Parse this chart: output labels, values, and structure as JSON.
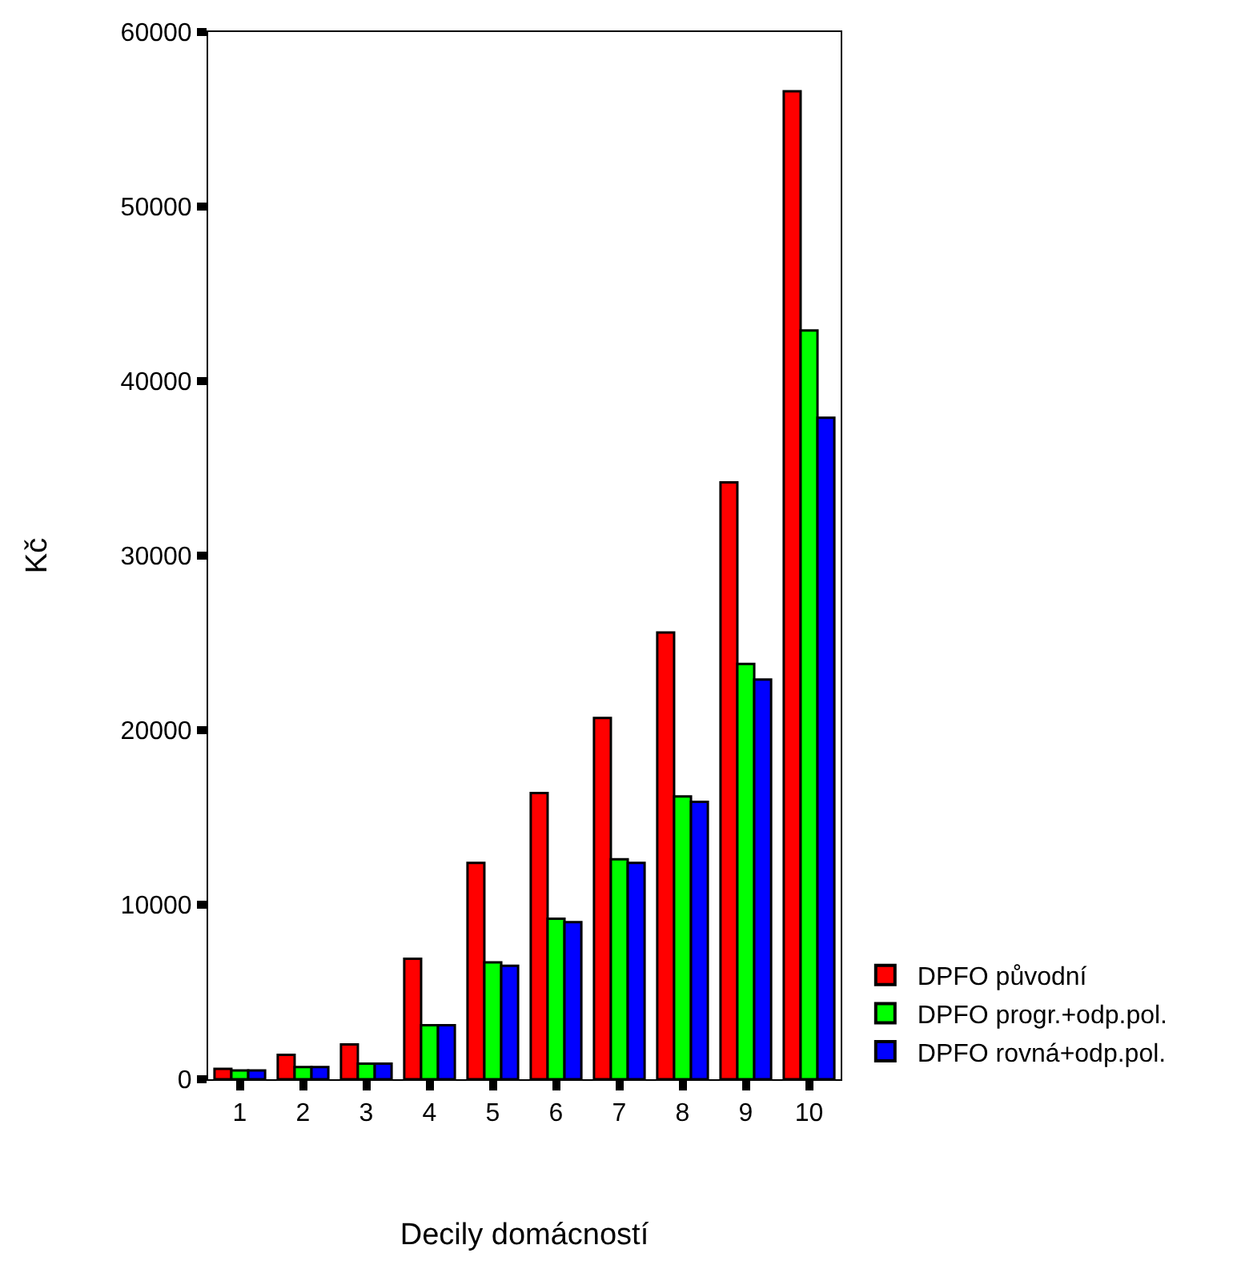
{
  "chart_data": {
    "type": "bar",
    "xlabel": "Decily domácností",
    "ylabel": "Kč",
    "categories": [
      "1",
      "2",
      "3",
      "4",
      "5",
      "6",
      "7",
      "8",
      "9",
      "10"
    ],
    "series": [
      {
        "name": "DPFO původní",
        "color": "#ff0000",
        "values": [
          600,
          1400,
          2000,
          6900,
          12400,
          16400,
          20700,
          25600,
          34200,
          56600
        ]
      },
      {
        "name": "DPFO progr.+odp.pol.",
        "color": "#00ff00",
        "values": [
          500,
          700,
          900,
          3100,
          6700,
          9200,
          12600,
          16200,
          23800,
          42900
        ]
      },
      {
        "name": "DPFO rovná+odp.pol.",
        "color": "#0000ff",
        "values": [
          500,
          700,
          900,
          3100,
          6500,
          9000,
          12400,
          15900,
          22900,
          37900
        ]
      }
    ],
    "ylim": [
      0,
      60000
    ],
    "yticks": [
      0,
      10000,
      20000,
      30000,
      40000,
      50000,
      60000
    ],
    "legend": "bottom right"
  }
}
